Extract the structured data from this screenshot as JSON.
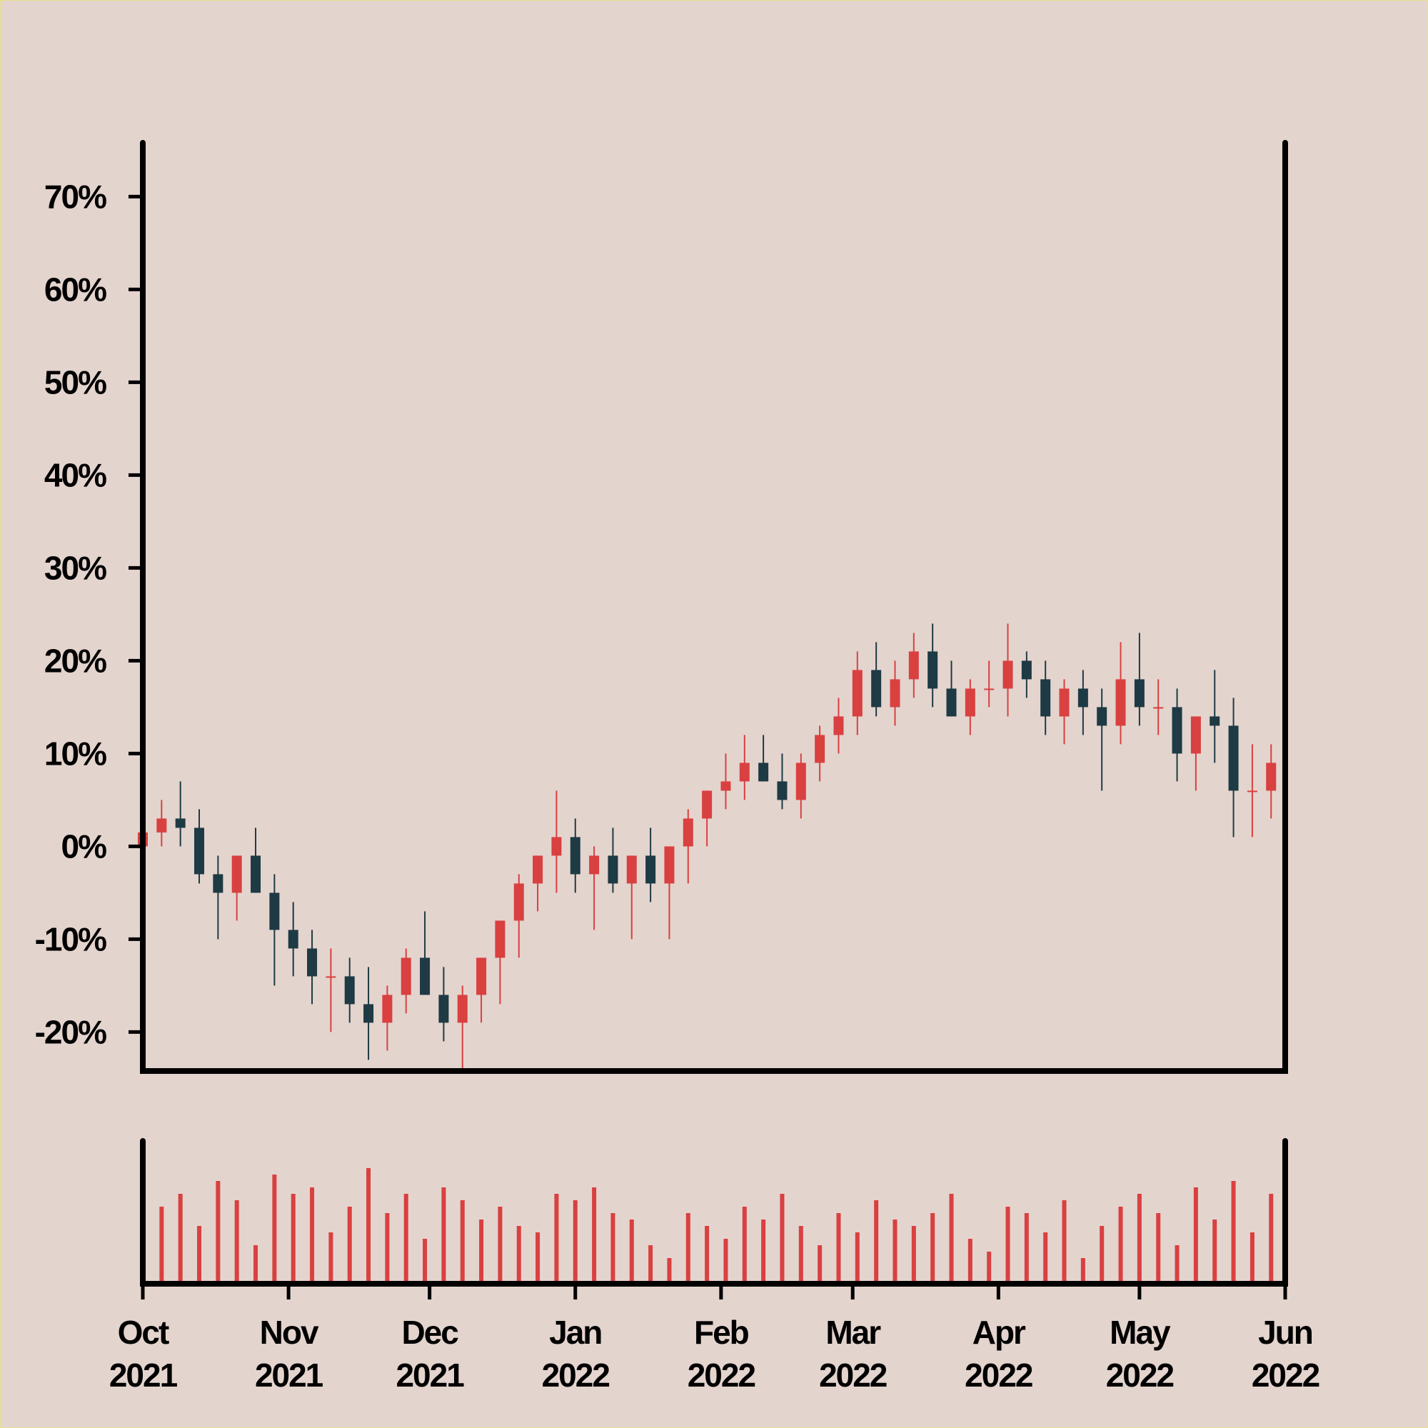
{
  "chart_data": {
    "type": "candlestick",
    "up_color": "#d94040",
    "down_color": "#1e3a44",
    "xlim": [
      "2021-10-01",
      "2022-06-01"
    ],
    "ylim": [
      -24.2,
      75.8
    ],
    "vlim": [
      0,
      100
    ],
    "yticks": [
      {
        "value": -20,
        "label": "-20%"
      },
      {
        "value": -10,
        "label": "-10%"
      },
      {
        "value": 0,
        "label": "0%"
      },
      {
        "value": 10,
        "label": "10%"
      },
      {
        "value": 20,
        "label": "20%"
      },
      {
        "value": 30,
        "label": "30%"
      },
      {
        "value": 40,
        "label": "40%"
      },
      {
        "value": 50,
        "label": "50%"
      },
      {
        "value": 60,
        "label": "60%"
      },
      {
        "value": 70,
        "label": "70%"
      }
    ],
    "xticks": [
      {
        "value": "2021-10-01",
        "label": [
          "Oct",
          "2021"
        ]
      },
      {
        "value": "2021-11-01",
        "label": [
          "Nov",
          "2021"
        ]
      },
      {
        "value": "2021-12-01",
        "label": [
          "Dec",
          "2021"
        ]
      },
      {
        "value": "2022-01-01",
        "label": [
          "Jan",
          "2022"
        ]
      },
      {
        "value": "2022-02-01",
        "label": [
          "Feb",
          "2022"
        ]
      },
      {
        "value": "2022-03-01",
        "label": [
          "Mar",
          "2022"
        ]
      },
      {
        "value": "2022-04-01",
        "label": [
          "Apr",
          "2022"
        ]
      },
      {
        "value": "2022-05-01",
        "label": [
          "May",
          "2022"
        ]
      },
      {
        "value": "2022-06-01",
        "label": [
          "Jun",
          "2022"
        ]
      }
    ],
    "x": [
      "2021-10-01",
      "2021-10-05",
      "2021-10-09",
      "2021-10-13",
      "2021-10-17",
      "2021-10-21",
      "2021-10-25",
      "2021-10-29",
      "2021-11-02",
      "2021-11-06",
      "2021-11-10",
      "2021-11-14",
      "2021-11-18",
      "2021-11-22",
      "2021-11-26",
      "2021-11-30",
      "2021-12-04",
      "2021-12-08",
      "2021-12-12",
      "2021-12-16",
      "2021-12-20",
      "2021-12-24",
      "2021-12-28",
      "2022-01-01",
      "2022-01-05",
      "2022-01-09",
      "2022-01-13",
      "2022-01-17",
      "2022-01-21",
      "2022-01-25",
      "2022-01-29",
      "2022-02-02",
      "2022-02-06",
      "2022-02-10",
      "2022-02-14",
      "2022-02-18",
      "2022-02-22",
      "2022-02-26",
      "2022-03-02",
      "2022-03-06",
      "2022-03-10",
      "2022-03-14",
      "2022-03-18",
      "2022-03-22",
      "2022-03-26",
      "2022-03-30",
      "2022-04-03",
      "2022-04-07",
      "2022-04-11",
      "2022-04-15",
      "2022-04-19",
      "2022-04-23",
      "2022-04-27",
      "2022-05-01",
      "2022-05-05",
      "2022-05-09",
      "2022-05-13",
      "2022-05-17",
      "2022-05-21",
      "2022-05-25",
      "2022-05-29"
    ],
    "open": [
      0,
      1.5,
      3,
      2,
      -3,
      -5,
      -1,
      -5,
      -9,
      -11,
      -14,
      -14,
      -17,
      -19,
      -16,
      -12,
      -16,
      -19,
      -16,
      -12,
      -8,
      -4,
      -1,
      1,
      -3,
      -1,
      -4,
      -1,
      -4,
      0,
      3,
      6,
      7,
      9,
      7,
      5,
      9,
      12,
      14,
      19,
      15,
      18,
      21,
      17,
      14,
      17,
      17,
      20,
      18,
      14,
      17,
      15,
      13,
      18,
      15,
      15,
      10,
      14,
      13,
      6,
      6
    ],
    "high": [
      2.5,
      5,
      7,
      4,
      -1,
      -1,
      2,
      -3,
      -6,
      -9,
      -11,
      -12,
      -13,
      -15,
      -11,
      -7,
      -13,
      -15,
      -12,
      -8,
      -3,
      -1,
      6,
      3,
      0,
      2,
      -1,
      2,
      -1,
      4,
      6,
      10,
      12,
      12,
      10,
      10,
      13,
      16,
      21,
      22,
      20,
      23,
      24,
      20,
      18,
      20,
      24,
      21,
      20,
      18,
      19,
      17,
      22,
      23,
      18,
      17,
      13,
      19,
      16,
      11,
      11
    ],
    "low": [
      -4,
      0,
      0,
      -4,
      -10,
      -8,
      -5,
      -15,
      -14,
      -17,
      -20,
      -19,
      -23,
      -22,
      -18,
      -15,
      -21,
      -24,
      -19,
      -17,
      -12,
      -7,
      -5,
      -5,
      -9,
      -5,
      -10,
      -6,
      -10,
      -4,
      0,
      4,
      5,
      7,
      4,
      3,
      7,
      10,
      12,
      14,
      13,
      16,
      15,
      14,
      12,
      15,
      14,
      16,
      12,
      11,
      12,
      6,
      11,
      13,
      12,
      7,
      6,
      9,
      1,
      1,
      3
    ],
    "close": [
      1.5,
      3,
      2,
      -3,
      -5,
      -1,
      -5,
      -9,
      -11,
      -14,
      -14,
      -17,
      -19,
      -16,
      -12,
      -16,
      -19,
      -16,
      -12,
      -8,
      -4,
      -1,
      1,
      -3,
      -1,
      -4,
      -1,
      -4,
      0,
      3,
      6,
      7,
      9,
      7,
      5,
      9,
      12,
      14,
      19,
      15,
      18,
      21,
      17,
      14,
      17,
      17,
      20,
      18,
      14,
      17,
      15,
      13,
      18,
      15,
      15,
      10,
      14,
      13,
      6,
      6,
      9
    ],
    "volume": [
      75,
      60,
      70,
      45,
      80,
      65,
      30,
      85,
      70,
      75,
      40,
      60,
      90,
      55,
      70,
      35,
      75,
      65,
      50,
      60,
      45,
      40,
      70,
      65,
      75,
      55,
      50,
      30,
      20,
      55,
      45,
      35,
      60,
      50,
      70,
      45,
      30,
      55,
      40,
      65,
      50,
      45,
      55,
      70,
      35,
      25,
      60,
      55,
      40,
      65,
      20,
      45,
      60,
      70,
      55,
      30,
      75,
      50,
      80,
      40,
      70
    ]
  }
}
